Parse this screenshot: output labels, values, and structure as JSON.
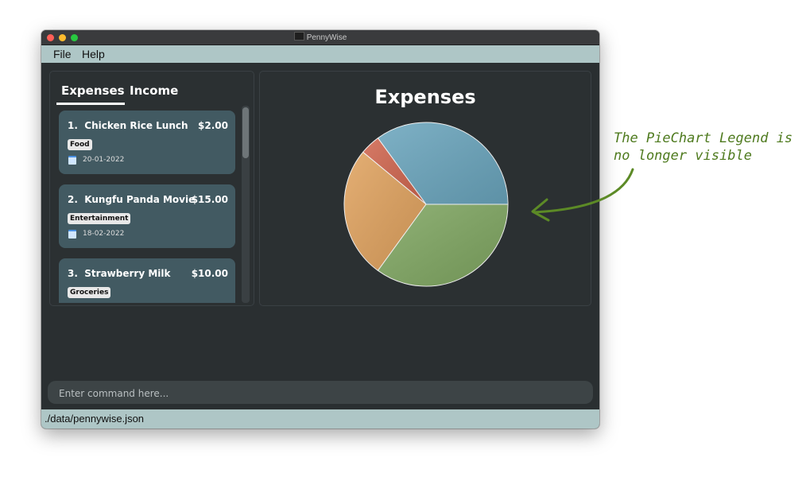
{
  "window": {
    "title": "PennyWise"
  },
  "menu": {
    "file": "File",
    "help": "Help"
  },
  "tabs": {
    "expenses": "Expenses",
    "income": "Income"
  },
  "entries": [
    {
      "index": "1.",
      "description": "Chicken Rice Lunch",
      "amount": "$2.00",
      "category": "Food",
      "date": "20-01-2022"
    },
    {
      "index": "2.",
      "description": "Kungfu Panda Movie",
      "amount": "$15.00",
      "category": "Entertainment",
      "date": "18-02-2022"
    },
    {
      "index": "3.",
      "description": "Strawberry Milk",
      "amount": "$10.00",
      "category": "Groceries",
      "date": ""
    }
  ],
  "chart_data": {
    "type": "pie",
    "title": "Expenses",
    "slices": [
      {
        "value": 0.35,
        "color": "#6aa5bd"
      },
      {
        "value": 0.04,
        "color": "#d0654e"
      },
      {
        "value": 0.26,
        "color": "#e0a25e"
      },
      {
        "value": 0.35,
        "color": "#7fa661"
      }
    ]
  },
  "command": {
    "placeholder": "Enter command here..."
  },
  "status": {
    "path": "./data/pennywise.json"
  },
  "annotation": {
    "line1": "The PieChart Legend is",
    "line2": "no longer visible"
  },
  "colors": {
    "annotation": "#4e7a1e",
    "card": "#425a62",
    "menubar": "#aec6c6"
  }
}
